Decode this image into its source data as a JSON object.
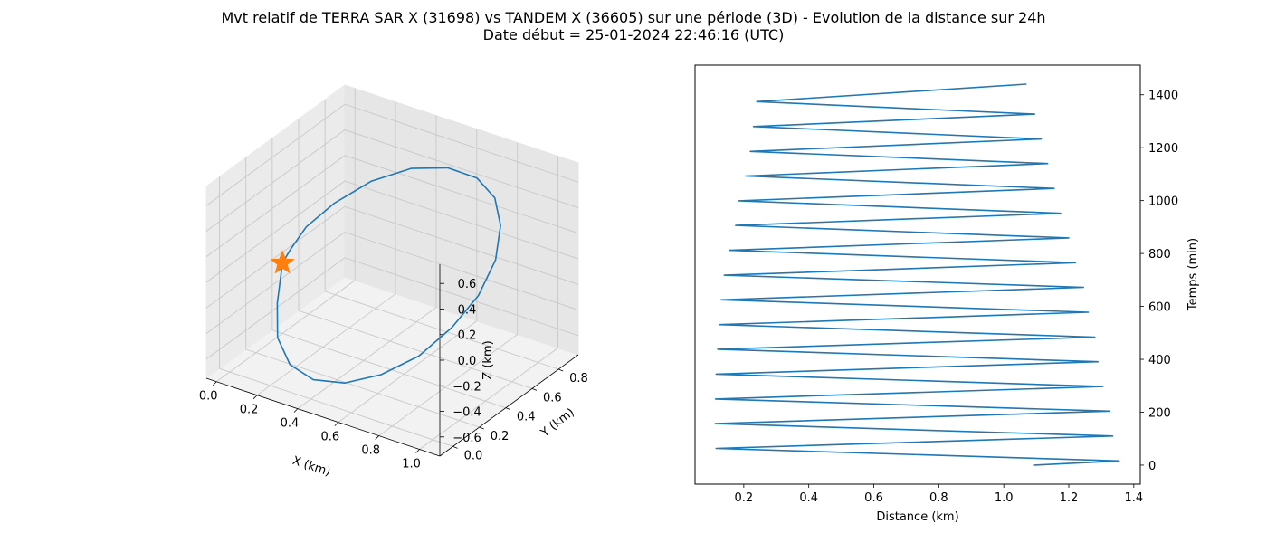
{
  "figure": {
    "title_line1": "Mvt relatif de TERRA SAR X (31698) vs TANDEM X (36605) sur une période (3D) - Evolution de la distance sur 24h",
    "title_line2": "Date début = 25-01-2024 22:46:16 (UTC)"
  },
  "chart_data": [
    {
      "type": "line3d",
      "xlabel": "X (km)",
      "ylabel": "Y (km)",
      "zlabel": "Z (km)",
      "x_ticks": [
        "0.0",
        "0.2",
        "0.4",
        "0.6",
        "0.8",
        "1.0"
      ],
      "y_ticks": [
        "0.0",
        "0.2",
        "0.4",
        "0.6",
        "0.8"
      ],
      "z_ticks": [
        "0.6",
        "0.4",
        "0.2",
        "0.0",
        "−0.2",
        "−0.4",
        "−0.6"
      ],
      "xlim": [
        -0.05,
        1.1
      ],
      "ylim": [
        -0.1,
        0.95
      ],
      "zlim": [
        -0.75,
        0.75
      ],
      "grid": true,
      "line_color": "#1f77b4",
      "marker": {
        "shape": "star",
        "color": "#ff7f0e",
        "x": 0.0,
        "y": 0.4,
        "z": -0.2
      },
      "series": [
        {
          "x": [
            0.0,
            0.02,
            0.08,
            0.2,
            0.36,
            0.54,
            0.72,
            0.88,
            0.99,
            1.05,
            1.05,
            0.99,
            0.89,
            0.75,
            0.58,
            0.4,
            0.23,
            0.1,
            0.02,
            0.0,
            0.0
          ],
          "y": [
            0.4,
            0.33,
            0.24,
            0.15,
            0.08,
            0.04,
            0.04,
            0.08,
            0.16,
            0.27,
            0.4,
            0.53,
            0.64,
            0.72,
            0.76,
            0.76,
            0.72,
            0.64,
            0.55,
            0.46,
            0.4
          ],
          "z": [
            -0.2,
            -0.45,
            -0.62,
            -0.7,
            -0.68,
            -0.58,
            -0.42,
            -0.22,
            0.0,
            0.2,
            0.38,
            0.52,
            0.6,
            0.62,
            0.58,
            0.48,
            0.32,
            0.14,
            -0.02,
            -0.14,
            -0.2
          ]
        }
      ]
    },
    {
      "type": "line",
      "xlabel": "Distance (km)",
      "ylabel": "Temps (min)",
      "x_ticks": [
        "0.2",
        "0.4",
        "0.6",
        "0.8",
        "1.0",
        "1.2",
        "1.4"
      ],
      "y_ticks": [
        "0",
        "200",
        "400",
        "600",
        "800",
        "1000",
        "1200",
        "1400"
      ],
      "xlim": [
        0.05,
        1.42
      ],
      "ylim": [
        -72,
        1512
      ],
      "y_axis_side": "right",
      "line_color": "#1f77b4",
      "series": [
        {
          "x": [
            1.09,
            1.355,
            0.115,
            1.335,
            0.112,
            1.325,
            0.113,
            1.305,
            0.115,
            1.29,
            0.12,
            1.28,
            0.125,
            1.26,
            0.13,
            1.245,
            0.14,
            1.22,
            0.155,
            1.2,
            0.175,
            1.175,
            0.185,
            1.155,
            0.205,
            1.135,
            0.22,
            1.115,
            0.23,
            1.095,
            0.24,
            1.07
          ],
          "y": [
            0,
            16,
            63,
            110,
            157,
            204,
            250,
            297,
            344,
            391,
            438,
            484,
            531,
            578,
            625,
            672,
            718,
            765,
            812,
            859,
            906,
            952,
            999,
            1046,
            1093,
            1140,
            1186,
            1233,
            1280,
            1327,
            1374,
            1440
          ]
        }
      ]
    }
  ]
}
